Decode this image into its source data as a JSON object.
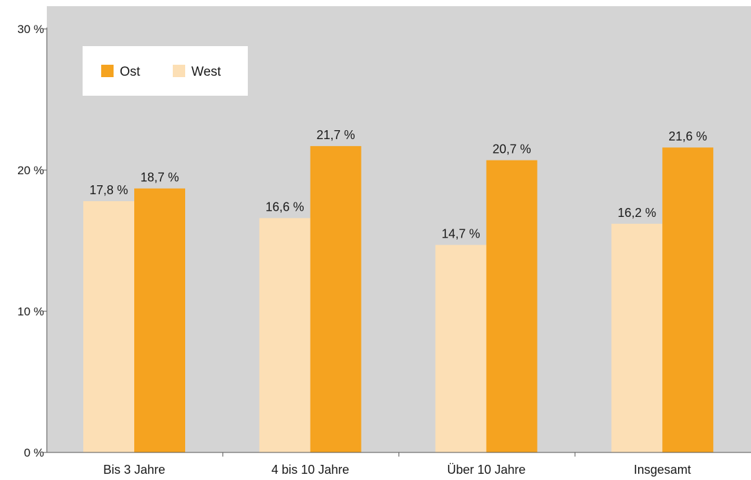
{
  "chart_data": {
    "type": "bar",
    "title": "",
    "xlabel": "",
    "ylabel": "",
    "categories": [
      "Bis 3 Jahre",
      "4 bis 10 Jahre",
      "Über 10 Jahre",
      "Insgesamt"
    ],
    "series": [
      {
        "name": "West",
        "color": "#fcdfb5",
        "values": [
          17.8,
          16.6,
          14.7,
          16.2
        ],
        "labels": [
          "17,8 %",
          "16,6 %",
          "14,7 %",
          "16,2 %"
        ]
      },
      {
        "name": "Ost",
        "color": "#f5a320",
        "values": [
          18.7,
          21.7,
          20.7,
          21.6
        ],
        "labels": [
          "18,7 %",
          "21,7 %",
          "20,7 %",
          "21,6 %"
        ]
      }
    ],
    "ylim": [
      0,
      30
    ],
    "yticks": [
      0,
      10,
      20,
      30
    ],
    "ytick_labels": [
      "0 %",
      "10 %",
      "20 %",
      "30 %"
    ],
    "grid": false,
    "legend": {
      "placement": "top-left",
      "items": [
        {
          "name": "Ost",
          "color": "#f5a320"
        },
        {
          "name": "West",
          "color": "#fcdfb5"
        }
      ]
    },
    "plot_background": "#d4d4d4"
  }
}
